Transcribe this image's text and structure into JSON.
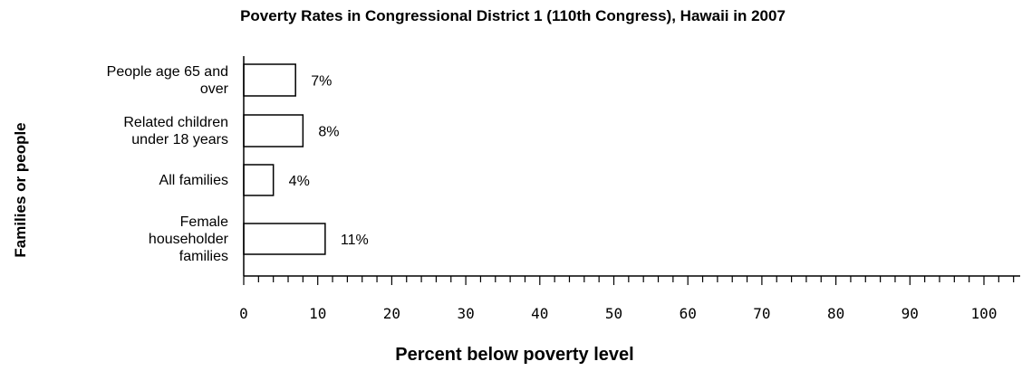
{
  "chart_data": {
    "type": "bar",
    "orientation": "horizontal",
    "title": "Poverty Rates in Congressional District 1 (110th Congress), Hawaii in 2007",
    "xlabel": "Percent below poverty level",
    "ylabel": "Families or people",
    "categories": [
      [
        "People age 65 and",
        "over"
      ],
      [
        "Related children",
        "under 18 years"
      ],
      [
        "All families"
      ],
      [
        "Female",
        "householder",
        "families"
      ]
    ],
    "values": [
      7,
      8,
      4,
      11
    ],
    "value_labels": [
      "7%",
      "8%",
      "4%",
      "11%"
    ],
    "xlim": [
      0,
      105
    ],
    "x_ticks": [
      0,
      10,
      20,
      30,
      40,
      50,
      60,
      70,
      80,
      90,
      100
    ],
    "x_tick_labels": [
      "0",
      "10",
      "20",
      "30",
      "40",
      "50",
      "60",
      "70",
      "80",
      "90",
      "100"
    ],
    "minor_tick_step": 2,
    "grid": false,
    "legend": "none"
  }
}
